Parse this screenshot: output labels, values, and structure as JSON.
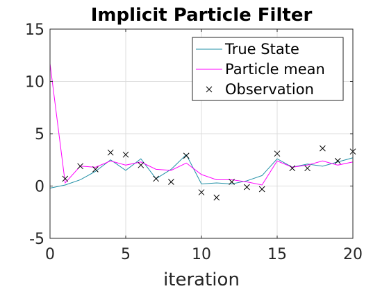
{
  "chart_data": {
    "type": "line",
    "title": "Implicit Particle Filter",
    "xlabel": "iteration",
    "ylabel": "",
    "xlim": [
      0,
      20
    ],
    "ylim": [
      -5,
      15
    ],
    "xticks": [
      "0",
      "5",
      "10",
      "15",
      "20"
    ],
    "yticks": [
      "-5",
      "0",
      "5",
      "10",
      "15"
    ],
    "grid": true,
    "legend_position": "top-right",
    "x": [
      0,
      1,
      2,
      3,
      4,
      5,
      6,
      7,
      8,
      9,
      10,
      11,
      12,
      13,
      14,
      15,
      16,
      17,
      18,
      19,
      20
    ],
    "series": [
      {
        "name": "True State",
        "style": "line",
        "color": "#1f8fa6",
        "values": [
          -0.2,
          0.1,
          0.6,
          1.4,
          2.5,
          1.5,
          2.6,
          0.7,
          1.6,
          3.0,
          0.2,
          0.3,
          0.2,
          0.5,
          1.0,
          2.6,
          1.8,
          2.1,
          1.9,
          2.3,
          2.7
        ]
      },
      {
        "name": "Particle mean",
        "style": "line",
        "color": "#ff00ff",
        "values": [
          11.7,
          0.3,
          1.9,
          1.8,
          2.4,
          2.0,
          2.3,
          1.6,
          1.5,
          2.2,
          1.1,
          0.6,
          0.6,
          0.4,
          0.1,
          2.4,
          1.8,
          2.0,
          2.4,
          2.0,
          2.3
        ]
      },
      {
        "name": "Observation",
        "style": "marker",
        "color": "#000000",
        "values": [
          null,
          0.7,
          1.9,
          1.6,
          3.2,
          3.0,
          2.0,
          0.7,
          0.4,
          2.9,
          -0.6,
          -1.1,
          0.4,
          -0.1,
          -0.3,
          3.1,
          1.7,
          1.7,
          3.6,
          2.4,
          3.3
        ]
      }
    ]
  }
}
